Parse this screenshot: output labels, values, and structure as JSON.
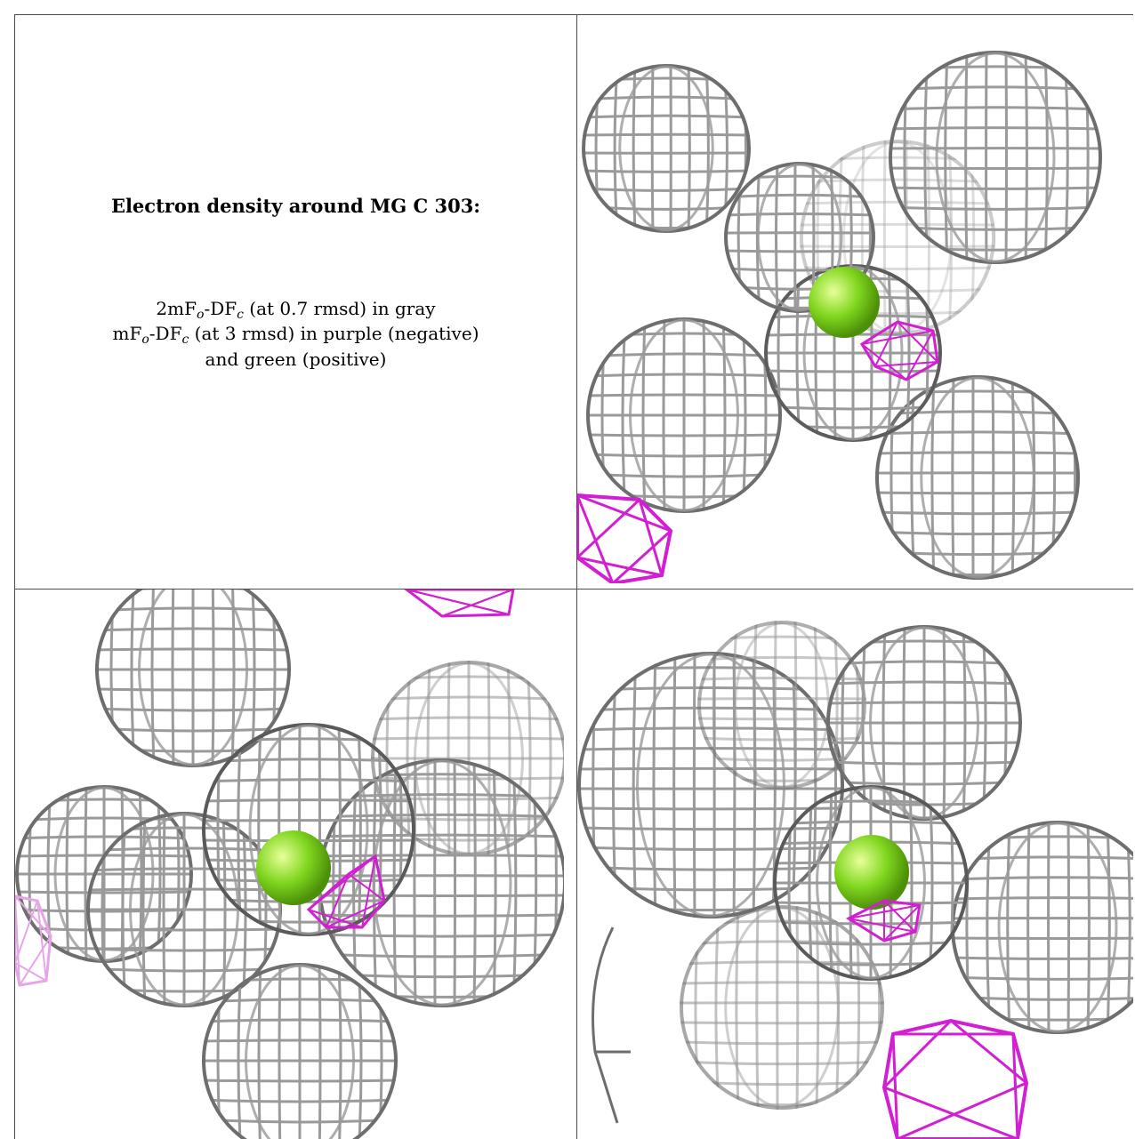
{
  "title": "Electron density around MG C 303:",
  "legend": {
    "line1": {
      "a": "2mF",
      "o": "o",
      "b": "-DF",
      "c": "c",
      "rest": " (at 0.7 rmsd) in gray"
    },
    "line2": {
      "a": "mF",
      "o": "o",
      "b": "-DF",
      "c": "c",
      "rest": " (at 3 rmsd) in purple (negative)"
    },
    "line3": "and green (positive)"
  },
  "colors": {
    "mesh_gray": "#9a9a9a",
    "mesh_dark": "#6e6e6e",
    "negative": "#d21fd2",
    "atom": "#7fd61e"
  },
  "panels": [
    {
      "name": "view-top-right"
    },
    {
      "name": "view-bottom-left"
    },
    {
      "name": "view-bottom-right"
    }
  ]
}
